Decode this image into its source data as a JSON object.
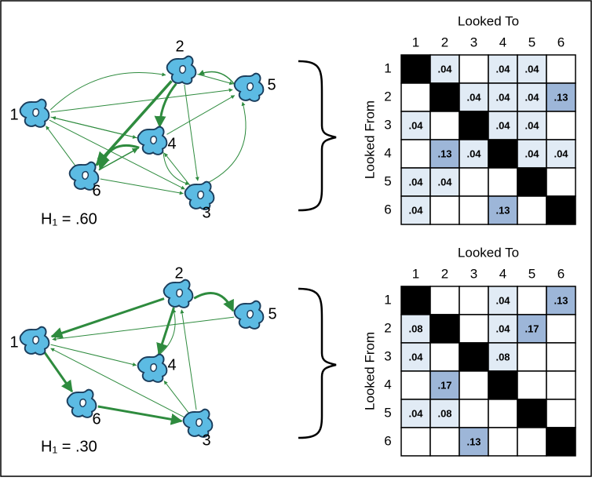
{
  "panels": [
    {
      "entropy_label": "H₁ = .60",
      "nodes": [
        "1",
        "2",
        "3",
        "4",
        "5",
        "6"
      ],
      "matrix": {
        "col_header": "Looked To",
        "row_header": "Looked From",
        "columns": [
          "1",
          "2",
          "3",
          "4",
          "5",
          "6"
        ],
        "rows": [
          {
            "label": "1",
            "cells": [
              null,
              ".04",
              null,
              ".04",
              ".04",
              null
            ]
          },
          {
            "label": "2",
            "cells": [
              null,
              null,
              ".04",
              ".04",
              ".04",
              ".13"
            ]
          },
          {
            "label": "3",
            "cells": [
              ".04",
              null,
              null,
              ".04",
              ".04",
              null
            ]
          },
          {
            "label": "4",
            "cells": [
              null,
              ".13",
              ".04",
              null,
              ".04",
              ".04"
            ]
          },
          {
            "label": "5",
            "cells": [
              ".04",
              ".04",
              null,
              null,
              null,
              null
            ]
          },
          {
            "label": "6",
            "cells": [
              ".04",
              null,
              null,
              ".13",
              null,
              null
            ]
          }
        ]
      }
    },
    {
      "entropy_label": "H₁ = .30",
      "nodes": [
        "1",
        "2",
        "3",
        "4",
        "5",
        "6"
      ],
      "matrix": {
        "col_header": "Looked To",
        "row_header": "Looked From",
        "columns": [
          "1",
          "2",
          "3",
          "4",
          "5",
          "6"
        ],
        "rows": [
          {
            "label": "1",
            "cells": [
              null,
              null,
              null,
              ".04",
              null,
              ".13"
            ]
          },
          {
            "label": "2",
            "cells": [
              ".08",
              null,
              null,
              ".04",
              ".17",
              null
            ]
          },
          {
            "label": "3",
            "cells": [
              ".04",
              null,
              null,
              ".08",
              null,
              null
            ]
          },
          {
            "label": "4",
            "cells": [
              null,
              ".17",
              null,
              null,
              null,
              null
            ]
          },
          {
            "label": "5",
            "cells": [
              ".04",
              ".08",
              null,
              null,
              null,
              null
            ]
          },
          {
            "label": "6",
            "cells": [
              null,
              null,
              ".13",
              null,
              null,
              null
            ]
          }
        ]
      }
    }
  ]
}
